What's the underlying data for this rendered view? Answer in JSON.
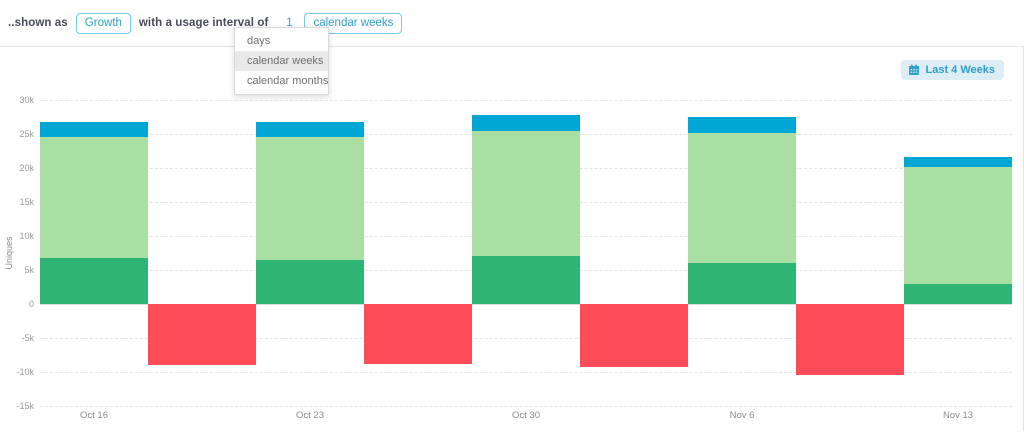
{
  "topbar": {
    "prefix_label": "..shown as",
    "shown_as_value": "Growth",
    "interval_label": "with a usage interval of",
    "interval_value": "1",
    "interval_unit_value": "calendar weeks"
  },
  "dropdown": {
    "options": [
      {
        "label": "days",
        "selected": false
      },
      {
        "label": "calendar weeks",
        "selected": true
      },
      {
        "label": "calendar months",
        "selected": false
      }
    ]
  },
  "date_range_button": {
    "label": "Last 4 Weeks",
    "icon": "calendar-icon"
  },
  "colors": {
    "accent_teal": "#2fa3c8",
    "pill_border": "#7cc9e0",
    "range_button_bg": "#dcedf5",
    "bar_blue": "#00a6d4",
    "bar_light_green": "#a9dfa3",
    "bar_green": "#2eb574",
    "bar_red": "#fd4b58",
    "gridline": "#e4e4e4"
  },
  "chart_data": {
    "type": "bar",
    "subtype": "stacked-growth",
    "title": "",
    "xlabel": "",
    "ylabel": "Uniques",
    "ylim": [
      -15000,
      30000
    ],
    "ytick_step": 5000,
    "ytick_labels": [
      "30k",
      "25k",
      "20k",
      "15k",
      "10k",
      "5k",
      "0",
      "-5k",
      "-10k",
      "-15k"
    ],
    "grid": "dashed-horizontal",
    "legend": "none",
    "categories": [
      "Oct 16",
      "Oct 23",
      "Oct 30",
      "Nov 6",
      "Nov 13"
    ],
    "series": [
      {
        "name": "base-green",
        "color": "#2eb574",
        "values": [
          6800,
          6400,
          7000,
          6100,
          2900
        ]
      },
      {
        "name": "light-green",
        "color": "#a9dfa3",
        "values": [
          17700,
          18100,
          18400,
          19000,
          17300
        ]
      },
      {
        "name": "blue",
        "color": "#00a6d4",
        "values": [
          2300,
          2200,
          2400,
          2400,
          1400
        ]
      }
    ],
    "stack_totals": [
      26800,
      26700,
      27800,
      27500,
      21600
    ],
    "negative_series": {
      "name": "red-churn",
      "color": "#fd4b58",
      "position": "between-categories",
      "values": [
        -8900,
        -8800,
        -9200,
        -10500
      ]
    }
  }
}
